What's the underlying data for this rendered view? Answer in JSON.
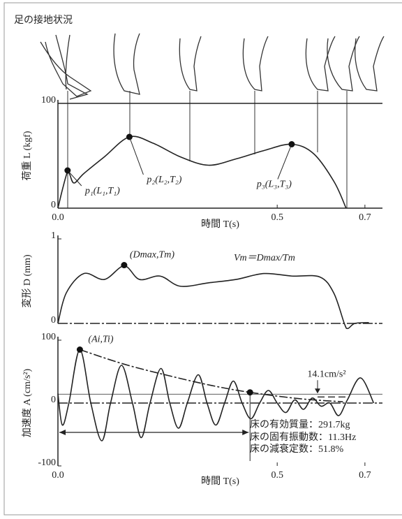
{
  "chart_data": [
    {
      "type": "line",
      "title": "足の接地状況",
      "ylabel": "荷重 L (kgf)",
      "xlabel": "時間 T(s)",
      "xlim": [
        0,
        0.74
      ],
      "ylim": [
        0,
        100
      ],
      "xticks": [
        {
          "value": 0,
          "label": "0.0"
        },
        0.5,
        0.7
      ],
      "yticks": [
        0,
        100
      ],
      "series": [
        {
          "color": "#222222",
          "style": "solid",
          "x": [
            0,
            0.011,
            0.022,
            0.027,
            0.037,
            0.059,
            0.106,
            0.163,
            0.217,
            0.279,
            0.343,
            0.406,
            0.47,
            0.533,
            0.583,
            0.63,
            0.657
          ],
          "values": [
            0,
            19,
            35,
            32,
            24,
            33,
            49,
            68,
            62,
            49,
            41,
            47,
            55,
            61,
            52,
            25,
            0
          ]
        }
      ],
      "points": [
        {
          "x": 0.022,
          "y": 36,
          "label": "p₁(L₁,T₁)"
        },
        {
          "x": 0.163,
          "y": 68,
          "label": "p₂(L₂,T₂)"
        },
        {
          "x": 0.533,
          "y": 61,
          "label": "p₃(L₃,T₃)"
        }
      ]
    },
    {
      "type": "line",
      "ylabel": "変形 D (mm)",
      "xlim": [
        0,
        0.74
      ],
      "ylim": [
        0,
        1
      ],
      "yticks": [
        0,
        1
      ],
      "annotations": [
        "Vm＝Dmax/Tm"
      ],
      "series": [
        {
          "color": "#222222",
          "style": "solid",
          "x": [
            0,
            0.019,
            0.059,
            0.106,
            0.151,
            0.186,
            0.233,
            0.279,
            0.343,
            0.406,
            0.47,
            0.534,
            0.597,
            0.629,
            0.653,
            0.661,
            0.677,
            0.709
          ],
          "values": [
            0,
            0.36,
            0.59,
            0.52,
            0.68,
            0.52,
            0.56,
            0.44,
            0.48,
            0.52,
            0.59,
            0.56,
            0.55,
            0.36,
            0,
            -0.06,
            0,
            0.01
          ]
        }
      ],
      "points": [
        {
          "x": 0.151,
          "y": 0.69,
          "label": "(Dmax,Tm)"
        }
      ]
    },
    {
      "type": "line",
      "ylabel": "加速度 A (cm/s²)",
      "xlabel": "時間 T(s)",
      "xlim": [
        0,
        0.74
      ],
      "ylim": [
        -100,
        100
      ],
      "xticks": [
        {
          "value": 0,
          "label": "0.0"
        },
        0.5,
        0.7
      ],
      "yticks": [
        -100,
        0,
        100
      ],
      "series": [
        {
          "color": "#222222",
          "style": "solid",
          "x": [
            0,
            0.01,
            0.025,
            0.05,
            0.075,
            0.1,
            0.12,
            0.145,
            0.17,
            0.19,
            0.21,
            0.235,
            0.255,
            0.275,
            0.295,
            0.32,
            0.34,
            0.36,
            0.38,
            0.4,
            0.42,
            0.44,
            0.46,
            0.48,
            0.5,
            0.52,
            0.54,
            0.56,
            0.58,
            0.6,
            0.62,
            0.64,
            0.66,
            0.69,
            0.72
          ],
          "values": [
            15,
            -35,
            0,
            85,
            0,
            -60,
            0,
            60,
            0,
            -55,
            0,
            55,
            0,
            -40,
            0,
            45,
            0,
            -35,
            0,
            35,
            0,
            -25,
            0,
            20,
            0,
            -15,
            5,
            -10,
            8,
            -5,
            0,
            -20,
            5,
            40,
            0
          ]
        },
        {
          "color": "#222222",
          "style": "dashdot",
          "x": [
            0.05,
            0.15,
            0.25,
            0.35,
            0.438,
            0.55,
            0.65
          ],
          "values": [
            85,
            62,
            44,
            28,
            17,
            7,
            2
          ]
        }
      ],
      "points": [
        {
          "x": 0.05,
          "y": 85,
          "label": "(Ai,Ti)"
        },
        {
          "x": 0.438,
          "y": 17
        }
      ],
      "ref_line": {
        "value": 14.1,
        "label": "14.1cm/s²"
      },
      "annotations": [
        "床の有効質量：291.7kg",
        "床の固有振動数：11.3Hz",
        "床の減衰定数：51.8%"
      ]
    }
  ]
}
